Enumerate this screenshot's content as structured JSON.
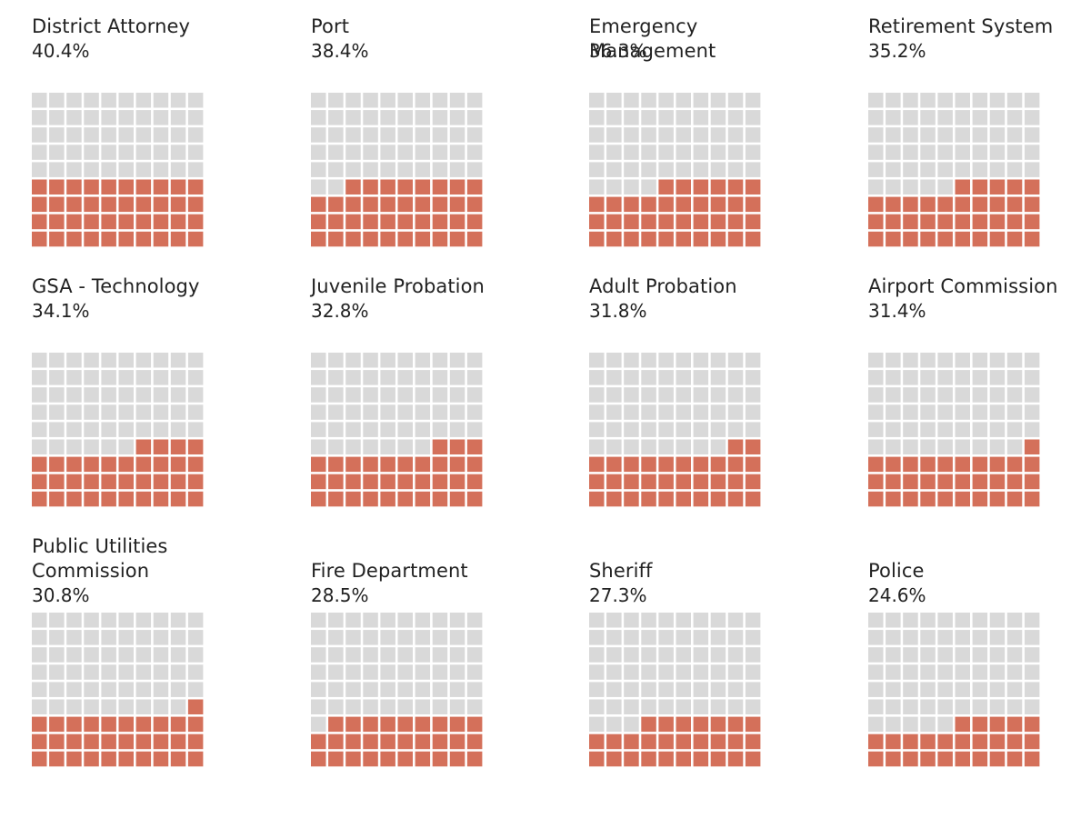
{
  "chart_data": {
    "type": "waffle",
    "unit_cells_per_chart": 100,
    "colors": {
      "filled": "#d4705a",
      "empty": "#d9d9d9"
    },
    "charts": [
      {
        "name": "District Attorney",
        "label": "40.4%",
        "value": 40.4
      },
      {
        "name": "Port",
        "label": "38.4%",
        "value": 38.4
      },
      {
        "name": "Emergency Management",
        "label": "36.3%",
        "value": 36.3
      },
      {
        "name": "Retirement System",
        "label": "35.2%",
        "value": 35.2
      },
      {
        "name": "GSA - Technology",
        "label": "34.1%",
        "value": 34.1
      },
      {
        "name": "Juvenile Probation",
        "label": "32.8%",
        "value": 32.8
      },
      {
        "name": "Adult Probation",
        "label": "31.8%",
        "value": 31.8
      },
      {
        "name": "Airport Commission",
        "label": "31.4%",
        "value": 31.4
      },
      {
        "name": "Public Utilities Commission",
        "label": "30.8%",
        "value": 30.8
      },
      {
        "name": "Fire Department",
        "label": "28.5%",
        "value": 28.5
      },
      {
        "name": "Sheriff",
        "label": "27.3%",
        "value": 27.3
      },
      {
        "name": "Police",
        "label": "24.6%",
        "value": 24.6
      }
    ]
  }
}
